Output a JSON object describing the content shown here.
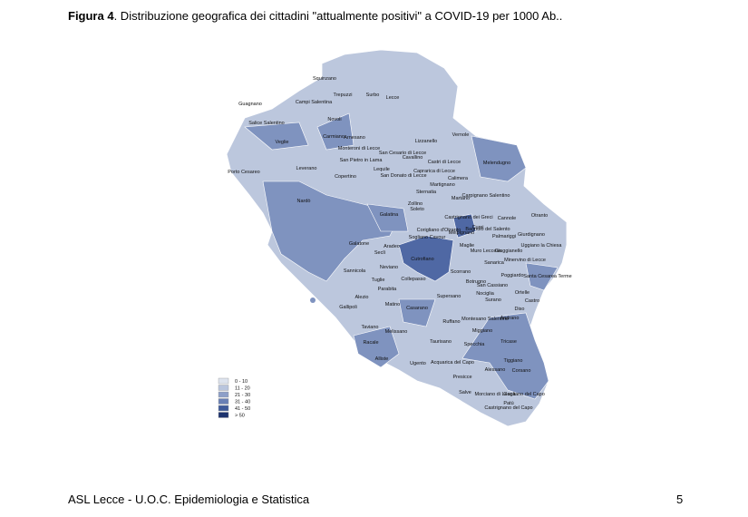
{
  "caption": {
    "label": "Figura 4",
    "text": ". Distribuzione  geografica dei cittadini \"attualmente positivi\" a COVID-19 per 1000 Ab.."
  },
  "map": {
    "towns": [
      "Squinzano",
      "Trepuzzi",
      "Surbo",
      "Lecce",
      "Guagnano",
      "Campi Salentina",
      "Salice Salentino",
      "Novoli",
      "Veglie",
      "Carmiano",
      "Arnesano",
      "Vernole",
      "Lizzanello",
      "Monteroni di Lecce",
      "San Cesario di Lecce",
      "Cavallino",
      "San Pietro in Lama",
      "Castri di Lecce",
      "Melendugno",
      "Leverano",
      "Lequile",
      "Caprarica di Lecce",
      "Copertino",
      "San Donato di Lecce",
      "Calimera",
      "Porto Cesareo",
      "Martignano",
      "Sternatia",
      "Martano",
      "Carpignano Salentino",
      "Zollino",
      "Nardò",
      "Soleto",
      "Galatina",
      "Castrignano dei Greci",
      "Cannole",
      "Otranto",
      "Corigliano d'Otranto",
      "Melpignano",
      "Cursi",
      "Bagnolo del Salento",
      "Palmariggi",
      "Giurdignano",
      "Galatone",
      "Aradeo",
      "Sogliano Cavour",
      "Maglie",
      "Muro Leccese",
      "Uggiano la Chiesa",
      "Seclì",
      "Cutrofiano",
      "Sanarica",
      "Minervino di Lecce",
      "Neviano",
      "Giuggianello",
      "Sannicola",
      "Scorrano",
      "Poggiardo",
      "Santa Cesarea Terme",
      "Collepasso",
      "Tuglie",
      "Botrugno",
      "San Cassiano",
      "Parabita",
      "Nociglia",
      "Surano",
      "Ortelle",
      "Alezio",
      "Supersano",
      "Castro",
      "Matino",
      "Gallipoli",
      "Casarano",
      "Diso",
      "Montesano Salentino",
      "Andrano",
      "Ruffano",
      "Taviano",
      "Melissano",
      "Miggiano",
      "Tricase",
      "Racale",
      "Taurisano",
      "Specchia",
      "Alliste",
      "Ugento",
      "Acquarica del Capo",
      "Tiggiano",
      "Alessano",
      "Corsano",
      "Presicce",
      "Salve",
      "Morciano di Leuca",
      "Gagliano del Capo",
      "Patù",
      "Castrignano del Capo"
    ]
  },
  "legend": {
    "items": [
      {
        "label": "0 - 10",
        "color": "#dde3ee"
      },
      {
        "label": "11 - 20",
        "color": "#b9c5dd"
      },
      {
        "label": "21 - 30",
        "color": "#8d9fc8"
      },
      {
        "label": "31 - 40",
        "color": "#6a80b5"
      },
      {
        "label": "41 - 50",
        "color": "#3f5a99"
      },
      {
        "label": "> 50",
        "color": "#1d336e"
      }
    ]
  },
  "footer": {
    "text": "ASL Lecce - U.O.C. Epidemiologia e Statistica",
    "page": "5"
  }
}
